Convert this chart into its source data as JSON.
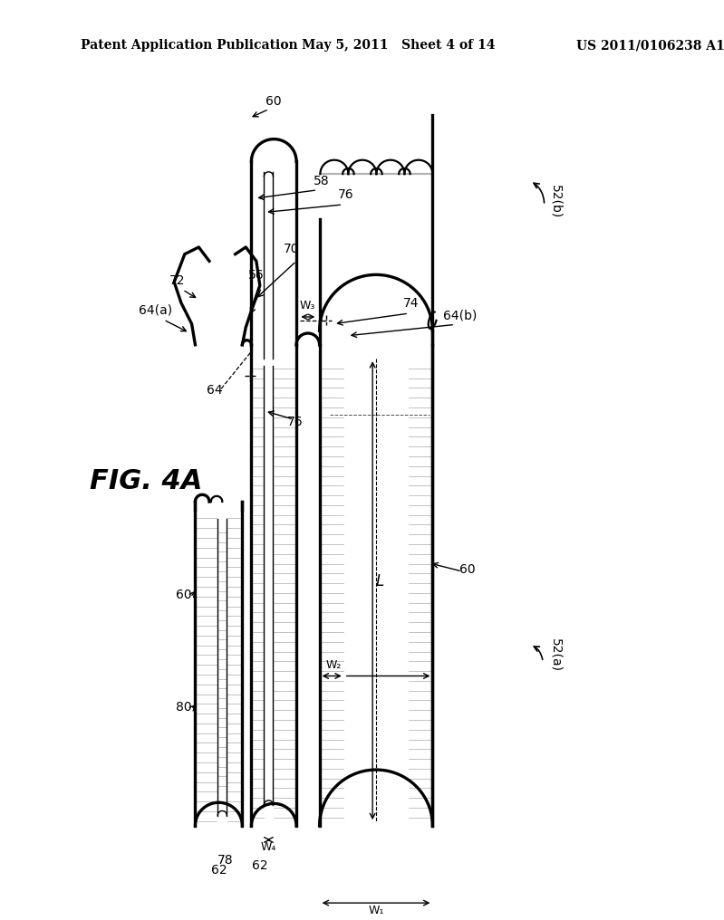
{
  "header_left": "Patent Application Publication",
  "header_mid": "May 5, 2011   Sheet 4 of 14",
  "header_right": "US 2011/0106238 A1",
  "fig_label": "FIG. 4A",
  "bg_color": "#ffffff",
  "line_color": "#000000"
}
